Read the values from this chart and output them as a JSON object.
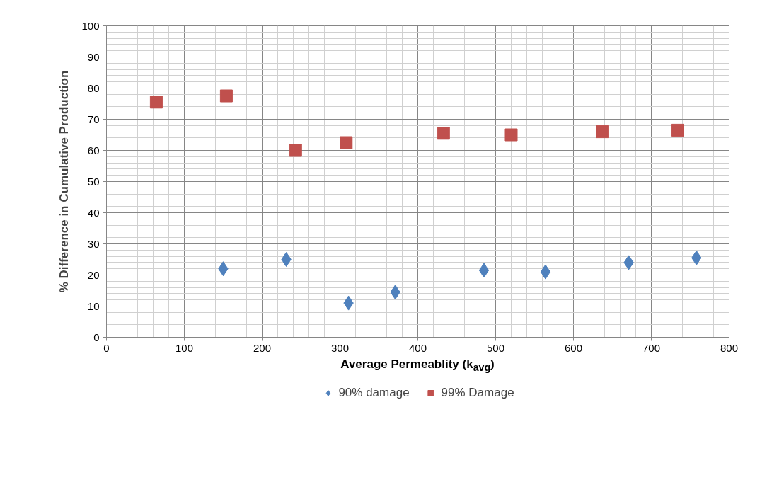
{
  "chart_data": {
    "type": "scatter",
    "xlabel": "Average Permeablity (k$_{avg}$)",
    "ylabel": "% Difference in Cumulative Production",
    "series": [
      {
        "name": "90% damage",
        "color": "#4f81bd",
        "marker": "diamond",
        "x": [
          150,
          231,
          311,
          371,
          485,
          564,
          671,
          758
        ],
        "values": [
          22,
          25,
          11,
          14.5,
          21.5,
          21,
          24,
          25.5
        ]
      },
      {
        "name": "99% Damage",
        "color": "#c0504d",
        "marker": "square",
        "x": [
          64,
          154,
          243,
          308,
          433,
          520,
          637,
          734
        ],
        "values": [
          75.5,
          77.5,
          60,
          62.5,
          65.5,
          65,
          66,
          66.5
        ]
      }
    ],
    "xlim": [
      0,
      800
    ],
    "xticks": [
      0,
      100,
      200,
      300,
      400,
      500,
      600,
      700,
      800
    ],
    "ylim": [
      0,
      100
    ],
    "yticks": [
      0,
      10,
      20,
      30,
      40,
      50,
      60,
      70,
      80,
      90,
      100
    ],
    "grid": true,
    "legend": "bottom"
  }
}
